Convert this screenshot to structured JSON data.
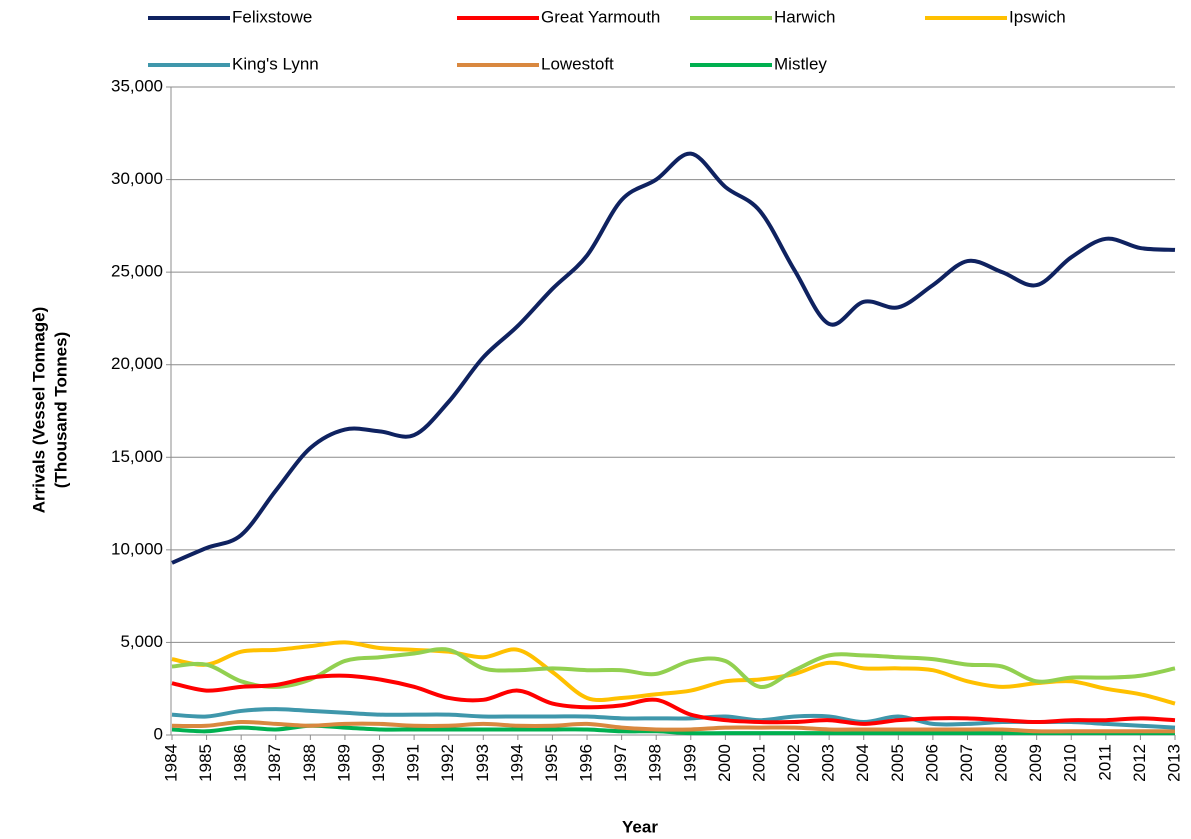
{
  "chart_data": {
    "type": "line",
    "x_label": "Year",
    "y_label": [
      "Arrivals (Vessel Tonnage)",
      "(Thousand Tonnes)"
    ],
    "categories": [
      "1984",
      "1985",
      "1986",
      "1987",
      "1988",
      "1989",
      "1990",
      "1991",
      "1992",
      "1993",
      "1994",
      "1995",
      "1996",
      "1997",
      "1998",
      "1999",
      "2000",
      "2001",
      "2002",
      "2003",
      "2004",
      "2005",
      "2006",
      "2007",
      "2008",
      "2009",
      "2010",
      "2011",
      "2012",
      "2013"
    ],
    "ylim": [
      0,
      35000
    ],
    "yticks": [
      0,
      {
        "value": 5000,
        "label": "5,000"
      },
      {
        "value": 10000,
        "label": "10,000"
      },
      {
        "value": 15000,
        "label": "15,000"
      },
      {
        "value": 20000,
        "label": "20,000"
      },
      {
        "value": 25000,
        "label": "25,000"
      },
      {
        "value": 30000,
        "label": "30,000"
      },
      {
        "value": 35000,
        "label": "35,000"
      }
    ],
    "grid": true,
    "legend": "top",
    "series": [
      {
        "name": "Felixstowe",
        "color": "#0f2260",
        "values": [
          9300,
          10100,
          10800,
          13200,
          15500,
          16500,
          16400,
          16200,
          18000,
          20400,
          22100,
          24100,
          25900,
          28900,
          30000,
          31400,
          29600,
          28300,
          25100,
          22200,
          23400,
          23100,
          24300,
          25600,
          25000,
          24300,
          25800,
          26800,
          26300,
          26200
        ]
      },
      {
        "name": "Great Yarmouth",
        "color": "#ff0000",
        "values": [
          2800,
          2400,
          2600,
          2700,
          3100,
          3200,
          3000,
          2600,
          2000,
          1900,
          2400,
          1700,
          1500,
          1600,
          1900,
          1100,
          800,
          700,
          700,
          800,
          600,
          800,
          900,
          900,
          800,
          700,
          800,
          800,
          900,
          800
        ]
      },
      {
        "name": "Harwich",
        "color": "#92d050",
        "values": [
          3700,
          3800,
          2900,
          2600,
          3000,
          4000,
          4200,
          4400,
          4600,
          3600,
          3500,
          3600,
          3500,
          3500,
          3300,
          4000,
          4000,
          2600,
          3500,
          4300,
          4300,
          4200,
          4100,
          3800,
          3700,
          2900,
          3100,
          3100,
          3200,
          3600
        ]
      },
      {
        "name": "Ipswich",
        "color": "#ffc000",
        "values": [
          4100,
          3800,
          4500,
          4600,
          4800,
          5000,
          4700,
          4600,
          4500,
          4200,
          4600,
          3400,
          2000,
          2000,
          2200,
          2400,
          2900,
          3000,
          3300,
          3900,
          3600,
          3600,
          3500,
          2900,
          2600,
          2800,
          2900,
          2500,
          2200,
          1700
        ]
      },
      {
        "name": "King's Lynn",
        "color": "#3f97ab",
        "values": [
          1100,
          1000,
          1300,
          1400,
          1300,
          1200,
          1100,
          1100,
          1100,
          1000,
          1000,
          1000,
          1000,
          900,
          900,
          900,
          1000,
          800,
          1000,
          1000,
          700,
          1000,
          600,
          600,
          700,
          700,
          700,
          600,
          500,
          400
        ]
      },
      {
        "name": "Lowestoft",
        "color": "#d9883f",
        "values": [
          500,
          500,
          700,
          600,
          500,
          600,
          600,
          500,
          500,
          600,
          500,
          500,
          600,
          400,
          300,
          300,
          400,
          400,
          400,
          300,
          300,
          300,
          300,
          300,
          300,
          200,
          200,
          200,
          200,
          200
        ]
      },
      {
        "name": "Mistley",
        "color": "#00b050",
        "values": [
          300,
          200,
          400,
          300,
          500,
          400,
          300,
          300,
          300,
          300,
          300,
          300,
          300,
          200,
          200,
          100,
          100,
          100,
          100,
          100,
          100,
          100,
          100,
          100,
          100,
          100,
          100,
          100,
          100,
          100
        ]
      }
    ]
  }
}
